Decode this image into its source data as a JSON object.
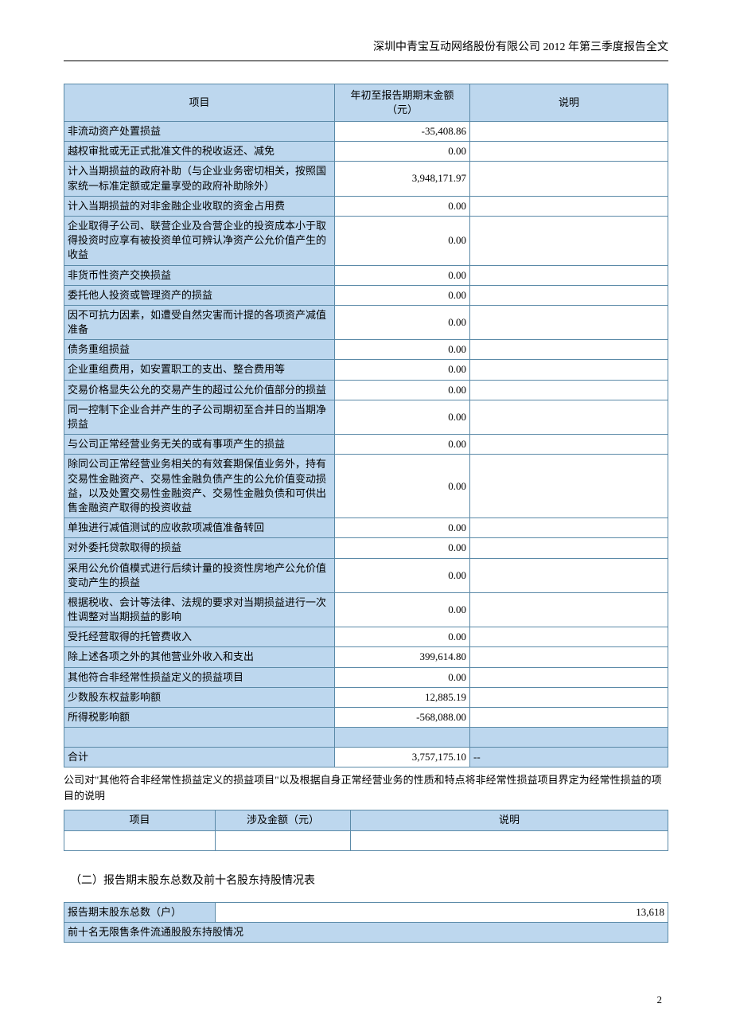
{
  "header": {
    "title": "深圳中青宝互动网络股份有限公司 2012 年第三季度报告全文"
  },
  "colors": {
    "header_bg": "#bdd7ee",
    "border": "#5b8aa8",
    "page_bg": "#ffffff",
    "text": "#000000"
  },
  "table1": {
    "columns": {
      "c1": "项目",
      "c2": "年初至报告期期末金额（元）",
      "c3": "说明"
    },
    "col_widths": [
      "340px",
      "170px",
      ""
    ],
    "rows": [
      {
        "item": "非流动资产处置损益",
        "value": "-35,408.86",
        "desc": ""
      },
      {
        "item": "越权审批或无正式批准文件的税收返还、减免",
        "value": "0.00",
        "desc": ""
      },
      {
        "item": "计入当期损益的政府补助（与企业业务密切相关，按照国家统一标准定额或定量享受的政府补助除外）",
        "value": "3,948,171.97",
        "desc": ""
      },
      {
        "item": "计入当期损益的对非金融企业收取的资金占用费",
        "value": "0.00",
        "desc": ""
      },
      {
        "item": "企业取得子公司、联营企业及合营企业的投资成本小于取得投资时应享有被投资单位可辨认净资产公允价值产生的收益",
        "value": "0.00",
        "desc": ""
      },
      {
        "item": "非货币性资产交换损益",
        "value": "0.00",
        "desc": ""
      },
      {
        "item": "委托他人投资或管理资产的损益",
        "value": "0.00",
        "desc": ""
      },
      {
        "item": "因不可抗力因素，如遭受自然灾害而计提的各项资产减值准备",
        "value": "0.00",
        "desc": ""
      },
      {
        "item": "债务重组损益",
        "value": "0.00",
        "desc": ""
      },
      {
        "item": "企业重组费用，如安置职工的支出、整合费用等",
        "value": "0.00",
        "desc": ""
      },
      {
        "item": "交易价格显失公允的交易产生的超过公允价值部分的损益",
        "value": "0.00",
        "desc": ""
      },
      {
        "item": "同一控制下企业合并产生的子公司期初至合并日的当期净损益",
        "value": "0.00",
        "desc": ""
      },
      {
        "item": "与公司正常经营业务无关的或有事项产生的损益",
        "value": "0.00",
        "desc": ""
      },
      {
        "item": "除同公司正常经营业务相关的有效套期保值业务外，持有交易性金融资产、交易性金融负债产生的公允价值变动损益，以及处置交易性金融资产、交易性金融负债和可供出售金融资产取得的投资收益",
        "value": "0.00",
        "desc": ""
      },
      {
        "item": "单独进行减值测试的应收款项减值准备转回",
        "value": "0.00",
        "desc": ""
      },
      {
        "item": "对外委托贷款取得的损益",
        "value": "0.00",
        "desc": ""
      },
      {
        "item": "采用公允价值模式进行后续计量的投资性房地产公允价值变动产生的损益",
        "value": "0.00",
        "desc": ""
      },
      {
        "item": "根据税收、会计等法律、法规的要求对当期损益进行一次性调整对当期损益的影响",
        "value": "0.00",
        "desc": ""
      },
      {
        "item": "受托经营取得的托管费收入",
        "value": "0.00",
        "desc": ""
      },
      {
        "item": "除上述各项之外的其他营业外收入和支出",
        "value": "399,614.80",
        "desc": ""
      },
      {
        "item": "其他符合非经常性损益定义的损益项目",
        "value": "0.00",
        "desc": ""
      },
      {
        "item": "少数股东权益影响额",
        "value": "12,885.19",
        "desc": ""
      },
      {
        "item": "所得税影响额",
        "value": "-568,088.00",
        "desc": ""
      }
    ],
    "total": {
      "item": "合计",
      "value": "3,757,175.10",
      "desc": "--"
    }
  },
  "note1": "公司对\"其他符合非经常性损益定义的损益项目\"以及根据自身正常经营业务的性质和特点将非经常性损益项目界定为经常性损益的项目的说明",
  "table2": {
    "columns": {
      "c1": "项目",
      "c2": "涉及金额（元）",
      "c3": "说明"
    }
  },
  "section2_title": "（二）报告期末股东总数及前十名股东持股情况表",
  "table3": {
    "row1_label": "报告期末股东总数（户）",
    "row1_value": "13,618",
    "row2_label": "前十名无限售条件流通股股东持股情况"
  },
  "page_number": "2"
}
